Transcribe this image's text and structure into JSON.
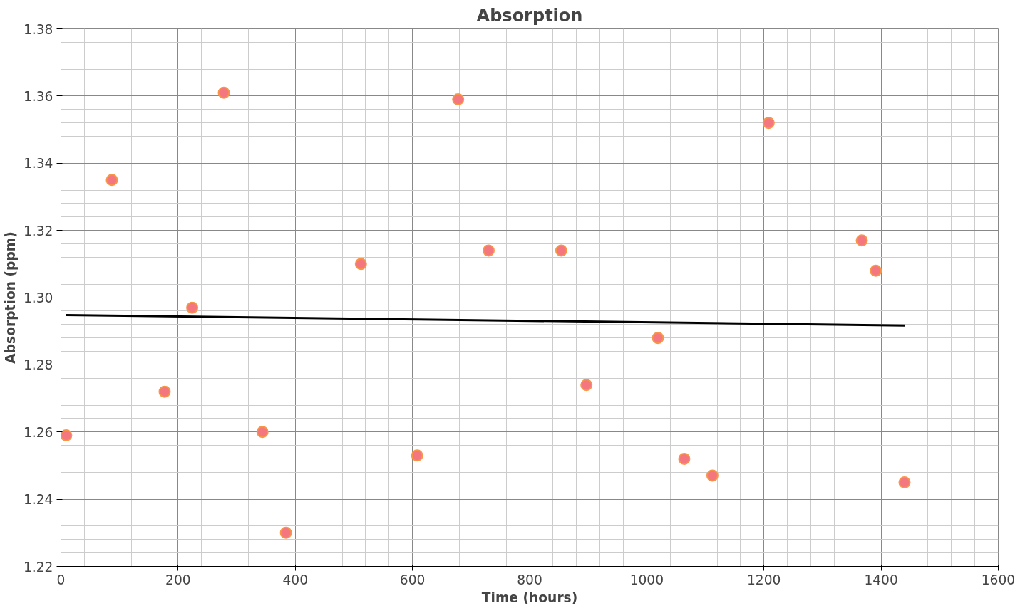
{
  "chart_data": {
    "type": "scatter",
    "title": "Absorption",
    "xlabel": "Time (hours)",
    "ylabel": "Absorption (ppm)",
    "xlim": [
      0,
      1600
    ],
    "xticks": [
      0,
      200,
      400,
      600,
      800,
      1000,
      1200,
      1400,
      1600
    ],
    "ylim": [
      1.22,
      1.38
    ],
    "yticks": [
      {
        "value": 1.22,
        "label": "1.22"
      },
      {
        "value": 1.24,
        "label": "1.24"
      },
      {
        "value": 1.26,
        "label": "1.26"
      },
      {
        "value": 1.28,
        "label": "1.28"
      },
      {
        "value": 1.3,
        "label": "1.30"
      },
      {
        "value": 1.32,
        "label": "1.32"
      },
      {
        "value": 1.34,
        "label": "1.34"
      },
      {
        "value": 1.36,
        "label": "1.36"
      },
      {
        "value": 1.38,
        "label": "1.38"
      }
    ],
    "grid": true,
    "series": [
      {
        "marker": "circle",
        "color": "#f4777f",
        "x": [
          9,
          87,
          177,
          224,
          278,
          344,
          384,
          512,
          608,
          678,
          730,
          854,
          897,
          1019,
          1064,
          1112,
          1208,
          1367,
          1391,
          1440
        ],
        "values": [
          1.259,
          1.335,
          1.272,
          1.297,
          1.361,
          1.26,
          1.23,
          1.31,
          1.253,
          1.359,
          1.314,
          1.314,
          1.274,
          1.288,
          1.252,
          1.247,
          1.352,
          1.317,
          1.308,
          1.245
        ]
      },
      {
        "type": "line",
        "color": "#000000",
        "line_style": "solid",
        "x": [
          8,
          1440
        ],
        "values": [
          1.2948,
          1.2917
        ]
      }
    ]
  }
}
